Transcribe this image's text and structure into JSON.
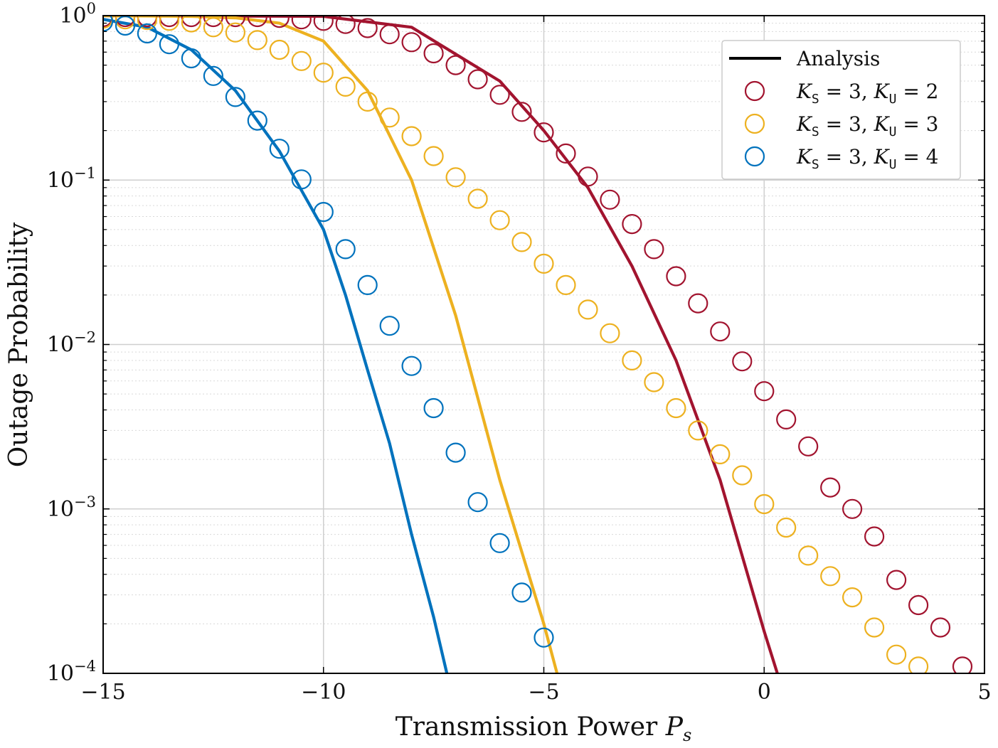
{
  "chart_data": {
    "type": "line",
    "xlabel": "Transmission Power P_s",
    "ylabel": "Outage Probability",
    "xlim": [
      -15,
      5
    ],
    "ylim": [
      0.0001,
      1
    ],
    "yscale": "log",
    "grid": true,
    "legend_position": "top-right",
    "x_ticks": [
      -15,
      -10,
      -5,
      0,
      5
    ],
    "x_tick_labels": [
      "−15",
      "−10",
      "−5",
      "0",
      "5"
    ],
    "y_ticks": [
      0.0001,
      0.001,
      0.01,
      0.1,
      1
    ],
    "y_tick_labels": [
      {
        "base": "10",
        "exp": "−4"
      },
      {
        "base": "10",
        "exp": "−3"
      },
      {
        "base": "10",
        "exp": "−2"
      },
      {
        "base": "10",
        "exp": "−1"
      },
      {
        "base": "10",
        "exp": "0"
      }
    ],
    "legend": [
      {
        "kind": "line",
        "label": "Analysis",
        "color": "#000000"
      },
      {
        "kind": "marker",
        "label": "K_S = 3, K_U = 2",
        "color": "#A2142F"
      },
      {
        "kind": "marker",
        "label": "K_S = 3, K_U = 3",
        "color": "#EDB120"
      },
      {
        "kind": "marker",
        "label": "K_S = 3, K_U = 4",
        "color": "#0072BD"
      }
    ],
    "analysis_lines": [
      {
        "color": "#A2142F",
        "x": [
          -15,
          -10,
          -8,
          -6,
          -5,
          -4,
          -3,
          -2,
          -1,
          0,
          0.3
        ],
        "y": [
          1,
          0.99,
          0.85,
          0.4,
          0.2,
          0.09,
          0.03,
          0.008,
          0.0015,
          0.00018,
          0.0001
        ]
      },
      {
        "color": "#EDB120",
        "x": [
          -15,
          -13,
          -12,
          -11,
          -10,
          -9,
          -8,
          -7,
          -6,
          -5,
          -4.7
        ],
        "y": [
          1,
          0.99,
          0.97,
          0.9,
          0.7,
          0.35,
          0.1,
          0.015,
          0.0015,
          0.0002,
          0.0001
        ]
      },
      {
        "color": "#0072BD",
        "x": [
          -15,
          -14,
          -13,
          -12,
          -11,
          -10,
          -9.5,
          -9,
          -8.5,
          -8,
          -7.5,
          -7.2
        ],
        "y": [
          0.95,
          0.85,
          0.62,
          0.35,
          0.15,
          0.05,
          0.02,
          0.007,
          0.0025,
          0.0007,
          0.00022,
          0.0001
        ]
      }
    ],
    "series": [
      {
        "name": "K_S = 3, K_U = 2",
        "color": "#A2142F",
        "x": [
          -15,
          -14.5,
          -14,
          -13.5,
          -13,
          -12.5,
          -12,
          -11.5,
          -11,
          -10.5,
          -10,
          -9.5,
          -9,
          -8.5,
          -8,
          -7.5,
          -7,
          -6.5,
          -6,
          -5.5,
          -5,
          -4.5,
          -4,
          -3.5,
          -3,
          -2.5,
          -2,
          -1.5,
          -1,
          -0.5,
          0,
          0.5,
          1,
          1.5,
          2,
          2.5,
          3,
          3.5,
          4,
          4.5
        ],
        "y": [
          0.98,
          0.98,
          0.98,
          0.98,
          0.98,
          0.98,
          0.98,
          0.98,
          0.97,
          0.95,
          0.93,
          0.89,
          0.84,
          0.77,
          0.69,
          0.59,
          0.5,
          0.41,
          0.33,
          0.26,
          0.195,
          0.145,
          0.105,
          0.076,
          0.054,
          0.038,
          0.026,
          0.0178,
          0.012,
          0.0079,
          0.0052,
          0.0035,
          0.0024,
          0.00135,
          0.001,
          0.00068,
          0.00037,
          0.00026,
          0.00019,
          0.00011
        ]
      },
      {
        "name": "K_S = 3, K_U = 3",
        "color": "#EDB120",
        "x": [
          -15,
          -14.5,
          -14,
          -13.5,
          -13,
          -12.5,
          -12,
          -11.5,
          -11,
          -10.5,
          -10,
          -9.5,
          -9,
          -8.5,
          -8,
          -7.5,
          -7,
          -6.5,
          -6,
          -5.5,
          -5,
          -4.5,
          -4,
          -3.5,
          -3,
          -2.5,
          -2,
          -1.5,
          -1,
          -0.5,
          0,
          0.5,
          1,
          1.5,
          2,
          2.5,
          3,
          3.5
        ],
        "y": [
          0.96,
          0.95,
          0.94,
          0.93,
          0.91,
          0.85,
          0.79,
          0.71,
          0.62,
          0.53,
          0.45,
          0.37,
          0.3,
          0.24,
          0.185,
          0.14,
          0.104,
          0.077,
          0.057,
          0.042,
          0.031,
          0.023,
          0.0163,
          0.0117,
          0.008,
          0.0059,
          0.0041,
          0.003,
          0.00215,
          0.0016,
          0.00107,
          0.00077,
          0.00052,
          0.00039,
          0.00029,
          0.00019,
          0.00013,
          0.00011
        ]
      },
      {
        "name": "K_S = 3, K_U = 4",
        "color": "#0072BD",
        "x": [
          -15,
          -14.5,
          -14,
          -13.5,
          -13,
          -12.5,
          -12,
          -11.5,
          -11,
          -10.5,
          -10,
          -9.5,
          -9,
          -8.5,
          -8,
          -7.5,
          -7,
          -6.5,
          -6,
          -5.5,
          -5
        ],
        "y": [
          0.92,
          0.87,
          0.78,
          0.67,
          0.55,
          0.43,
          0.32,
          0.23,
          0.155,
          0.101,
          0.064,
          0.038,
          0.023,
          0.013,
          0.0074,
          0.0041,
          0.0022,
          0.0011,
          0.00062,
          0.00031,
          0.000165
        ]
      }
    ]
  }
}
